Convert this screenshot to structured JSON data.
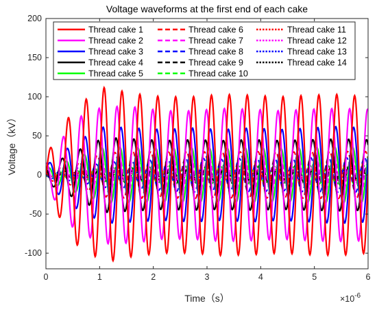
{
  "chart_data": {
    "type": "line",
    "title": "Voltage waveforms at the first end of each cake",
    "xlabel": "Time（s）",
    "ylabel": "Voltage（kV）",
    "x_exponent_label": "×10",
    "x_exponent_power": "-6",
    "xlim": [
      0,
      6
    ],
    "ylim": [
      -120,
      200
    ],
    "x_tick_labels": [
      "0",
      "1",
      "2",
      "3",
      "4",
      "5",
      "6"
    ],
    "y_tick_labels": [
      "200",
      "150",
      "100",
      "50",
      "0",
      "-50",
      "-100"
    ],
    "x_ticks": [
      0,
      1,
      2,
      3,
      4,
      5,
      6
    ],
    "y_ticks": [
      200,
      150,
      100,
      50,
      0,
      -50,
      -100
    ],
    "grid": false,
    "legend_placement": "top",
    "legend_columns": 3,
    "oscillation_period_us": 0.3333,
    "series": [
      {
        "name": "Thread cake 1",
        "color": "#ff0000",
        "dash": "solid",
        "amplitude_kv": [
          25,
          88,
          112,
          104,
          100,
          100,
          103,
          102,
          100,
          102,
          103,
          100
        ]
      },
      {
        "name": "Thread cake 2",
        "color": "#ff00ff",
        "dash": "solid",
        "amplitude_kv": [
          15,
          72,
          88,
          87,
          82,
          82,
          85,
          84,
          82,
          84,
          85,
          84
        ]
      },
      {
        "name": "Thread cake 3",
        "color": "#0000ff",
        "dash": "solid",
        "amplitude_kv": [
          12,
          42,
          62,
          60,
          58,
          60,
          58,
          60,
          58,
          60,
          62,
          60
        ]
      },
      {
        "name": "Thread cake 4",
        "color": "#000000",
        "dash": "solid",
        "amplitude_kv": [
          10,
          30,
          48,
          46,
          44,
          45,
          44,
          45,
          44,
          45,
          46,
          45
        ]
      },
      {
        "name": "Thread cake 5",
        "color": "#00ff00",
        "dash": "solid",
        "amplitude_kv": [
          8,
          22,
          36,
          35,
          34,
          35,
          34,
          35,
          34,
          35,
          36,
          35
        ]
      },
      {
        "name": "Thread cake 6",
        "color": "#ff0000",
        "dash": "dashed",
        "amplitude_kv": [
          6,
          14,
          28,
          30,
          29,
          30,
          29,
          30,
          29,
          30,
          30,
          30
        ]
      },
      {
        "name": "Thread cake 7",
        "color": "#ff00ff",
        "dash": "dashed",
        "amplitude_kv": [
          5,
          10,
          22,
          24,
          24,
          25,
          24,
          25,
          24,
          25,
          25,
          25
        ]
      },
      {
        "name": "Thread cake 8",
        "color": "#0000ff",
        "dash": "dashed",
        "amplitude_kv": [
          4,
          8,
          16,
          18,
          20,
          22,
          20,
          22,
          20,
          22,
          22,
          22
        ]
      },
      {
        "name": "Thread cake 9",
        "color": "#000000",
        "dash": "dashed",
        "amplitude_kv": [
          3,
          6,
          12,
          14,
          15,
          16,
          15,
          16,
          15,
          16,
          16,
          16
        ]
      },
      {
        "name": "Thread cake 10",
        "color": "#00ff00",
        "dash": "dashed",
        "amplitude_kv": [
          3,
          5,
          9,
          10,
          11,
          12,
          11,
          12,
          11,
          12,
          12,
          12
        ]
      },
      {
        "name": "Thread cake 11",
        "color": "#ff0000",
        "dash": "dotted",
        "amplitude_kv": [
          2,
          4,
          7,
          8,
          9,
          10,
          9,
          10,
          9,
          10,
          10,
          10
        ]
      },
      {
        "name": "Thread cake 12",
        "color": "#ff00ff",
        "dash": "dotted",
        "amplitude_kv": [
          2,
          4,
          6,
          7,
          8,
          8,
          8,
          8,
          8,
          8,
          8,
          8
        ]
      },
      {
        "name": "Thread cake 13",
        "color": "#0000ff",
        "dash": "dotted",
        "amplitude_kv": [
          2,
          3,
          5,
          6,
          7,
          7,
          7,
          7,
          7,
          7,
          7,
          7
        ]
      },
      {
        "name": "Thread cake 14",
        "color": "#000000",
        "dash": "dotted",
        "amplitude_kv": [
          2,
          3,
          5,
          6,
          6,
          6,
          6,
          6,
          6,
          6,
          6,
          6
        ]
      }
    ]
  }
}
